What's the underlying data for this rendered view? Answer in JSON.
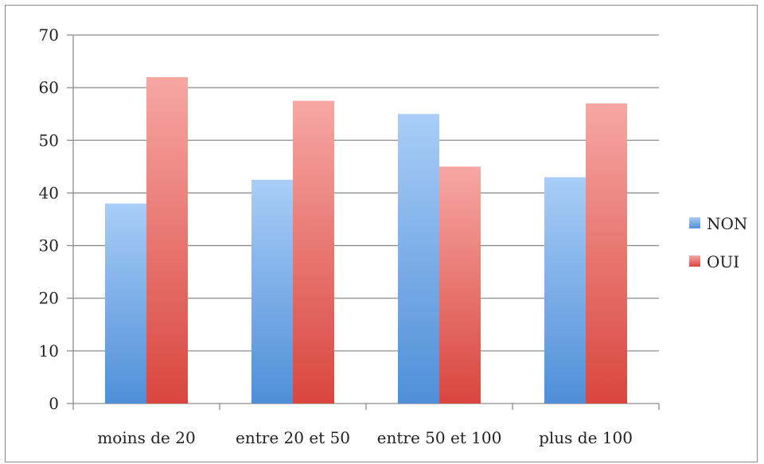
{
  "chart_data": {
    "type": "bar",
    "categories": [
      "moins de 20",
      "entre 20 et 50",
      "entre 50 et 100",
      "plus de 100"
    ],
    "series": [
      {
        "name": "NON",
        "values": [
          38,
          42.5,
          55,
          43
        ],
        "color": "#5b9bd5"
      },
      {
        "name": "OUI",
        "values": [
          62,
          57.5,
          45,
          57
        ],
        "color": "#e0504c"
      }
    ],
    "title": "",
    "xlabel": "",
    "ylabel": "",
    "ylim": [
      0,
      70
    ],
    "yticks": [
      "0",
      "10",
      "20",
      "30",
      "40",
      "50",
      "60",
      "70"
    ],
    "grid": true,
    "legend_position": "right"
  }
}
